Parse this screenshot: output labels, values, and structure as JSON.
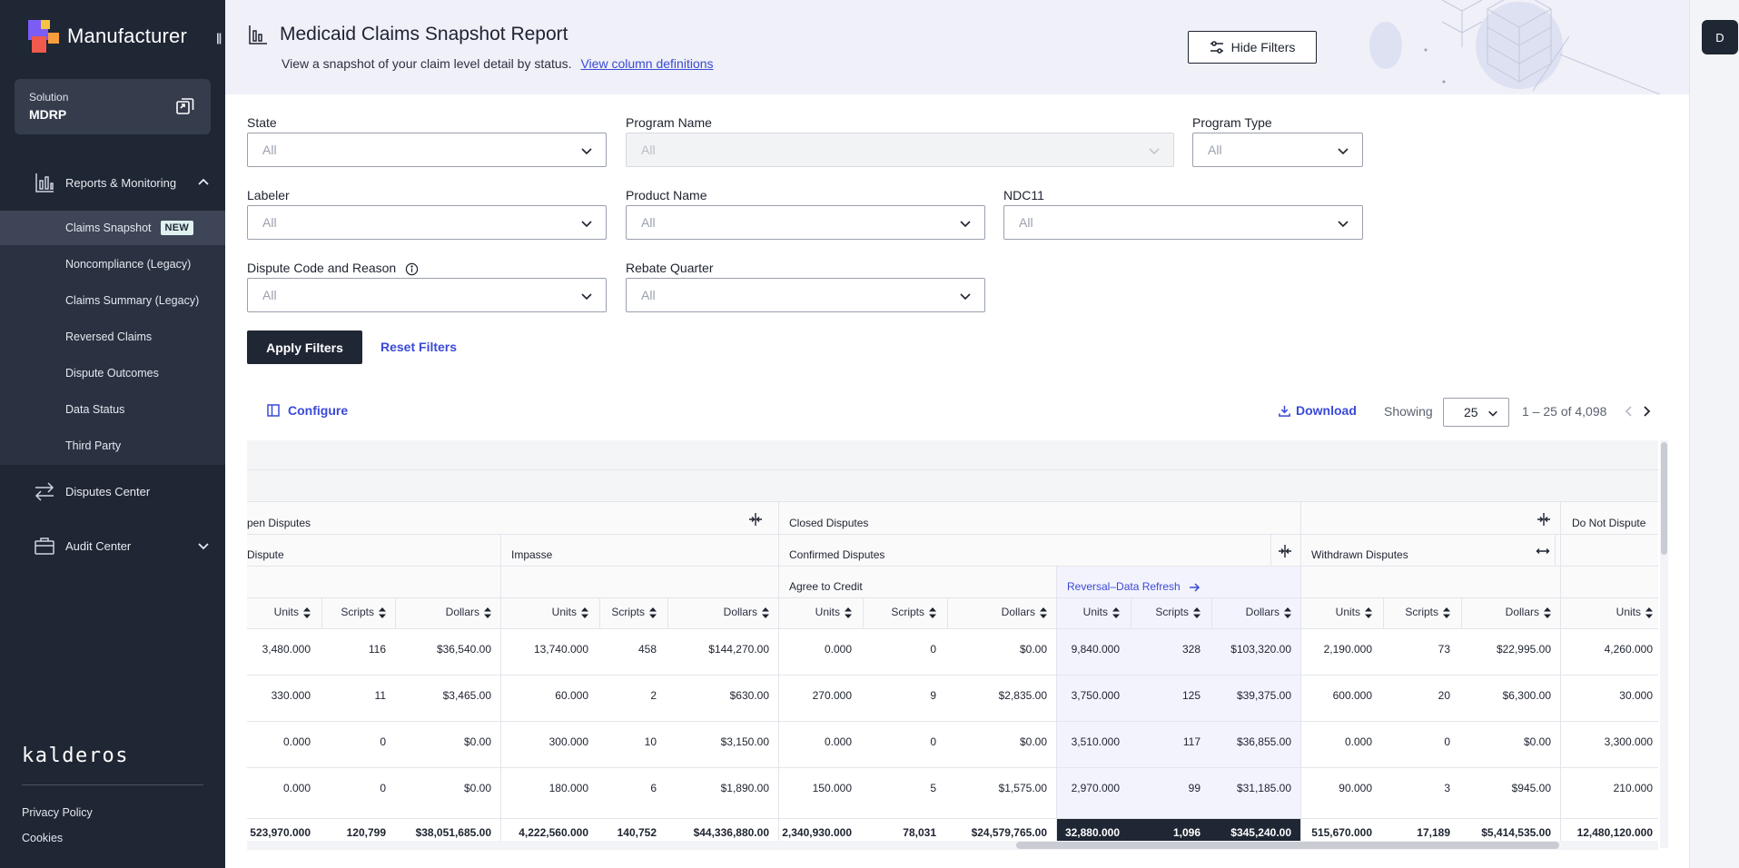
{
  "sidebar": {
    "logo_text": "Manufacturer",
    "solution_label": "Solution",
    "solution_value": "MDRP",
    "reports_label": "Reports & Monitoring",
    "sub_items": [
      {
        "label": "Claims Snapshot",
        "badge": "NEW"
      },
      {
        "label": "Noncompliance (Legacy)"
      },
      {
        "label": "Claims Summary (Legacy)"
      },
      {
        "label": "Reversed Claims"
      },
      {
        "label": "Dispute Outcomes"
      },
      {
        "label": "Data Status"
      },
      {
        "label": "Third Party"
      }
    ],
    "disputes_label": "Disputes Center",
    "audit_label": "Audit Center",
    "brand": "kalderos",
    "privacy": "Privacy Policy",
    "cookies": "Cookies"
  },
  "user": {
    "initial": "D"
  },
  "header": {
    "title": "Medicaid Claims Snapshot Report",
    "subtitle": "View a snapshot of your claim level detail by status.",
    "column_link": "View column definitions",
    "hide_filters": "Hide Filters"
  },
  "filters": {
    "state": {
      "label": "State",
      "value": "All"
    },
    "program_name": {
      "label": "Program Name",
      "value": "All"
    },
    "program_type": {
      "label": "Program Type",
      "value": "All"
    },
    "labeler": {
      "label": "Labeler",
      "value": "All"
    },
    "product_name": {
      "label": "Product Name",
      "value": "All"
    },
    "ndc11": {
      "label": "NDC11",
      "value": "All"
    },
    "dispute_code": {
      "label": "Dispute Code and Reason",
      "value": "All"
    },
    "rebate_quarter": {
      "label": "Rebate Quarter",
      "value": "All"
    },
    "apply": "Apply Filters",
    "reset": "Reset Filters"
  },
  "toolbar": {
    "configure": "Configure",
    "download": "Download",
    "showing": "Showing",
    "page_size": "25",
    "range": "1 – 25 of 4,098"
  },
  "table": {
    "groups_l1": {
      "open": "pen Disputes",
      "closed": "Closed Disputes",
      "do_not": "Do Not Dispute"
    },
    "groups_l2": {
      "dispute": "Dispute",
      "impasse": "Impasse",
      "confirmed": "Confirmed Disputes",
      "withdrawn": "Withdrawn Disputes"
    },
    "groups_l3": {
      "agree": "Agree to Credit",
      "reversal": "Reversal–Data Refresh"
    },
    "columns": [
      "Units",
      "Scripts",
      "Dollars",
      "Units",
      "Scripts",
      "Dollars",
      "Units",
      "Scripts",
      "Dollars",
      "Units",
      "Scripts",
      "Dollars",
      "Units",
      "Scripts",
      "Dollars",
      "Units"
    ],
    "rows": [
      [
        "3,480.000",
        "116",
        "$36,540.00",
        "13,740.000",
        "458",
        "$144,270.00",
        "0.000",
        "0",
        "$0.00",
        "9,840.000",
        "328",
        "$103,320.00",
        "2,190.000",
        "73",
        "$22,995.00",
        "4,260.000"
      ],
      [
        "330.000",
        "11",
        "$3,465.00",
        "60.000",
        "2",
        "$630.00",
        "270.000",
        "9",
        "$2,835.00",
        "3,750.000",
        "125",
        "$39,375.00",
        "600.000",
        "20",
        "$6,300.00",
        "30.000"
      ],
      [
        "0.000",
        "0",
        "$0.00",
        "300.000",
        "10",
        "$3,150.00",
        "0.000",
        "0",
        "$0.00",
        "3,510.000",
        "117",
        "$36,855.00",
        "0.000",
        "0",
        "$0.00",
        "3,300.000"
      ],
      [
        "0.000",
        "0",
        "$0.00",
        "180.000",
        "6",
        "$1,890.00",
        "150.000",
        "5",
        "$1,575.00",
        "2,970.000",
        "99",
        "$31,185.00",
        "90.000",
        "3",
        "$945.00",
        "210.000"
      ]
    ],
    "totals": [
      "523,970.000",
      "120,799",
      "$38,051,685.00",
      "4,222,560.000",
      "140,752",
      "$44,336,880.00",
      "2,340,930.000",
      "78,031",
      "$24,579,765.00",
      "32,880.000",
      "1,096",
      "$345,240.00",
      "515,670.000",
      "17,189",
      "$5,414,535.00",
      "12,480,120.000"
    ]
  }
}
